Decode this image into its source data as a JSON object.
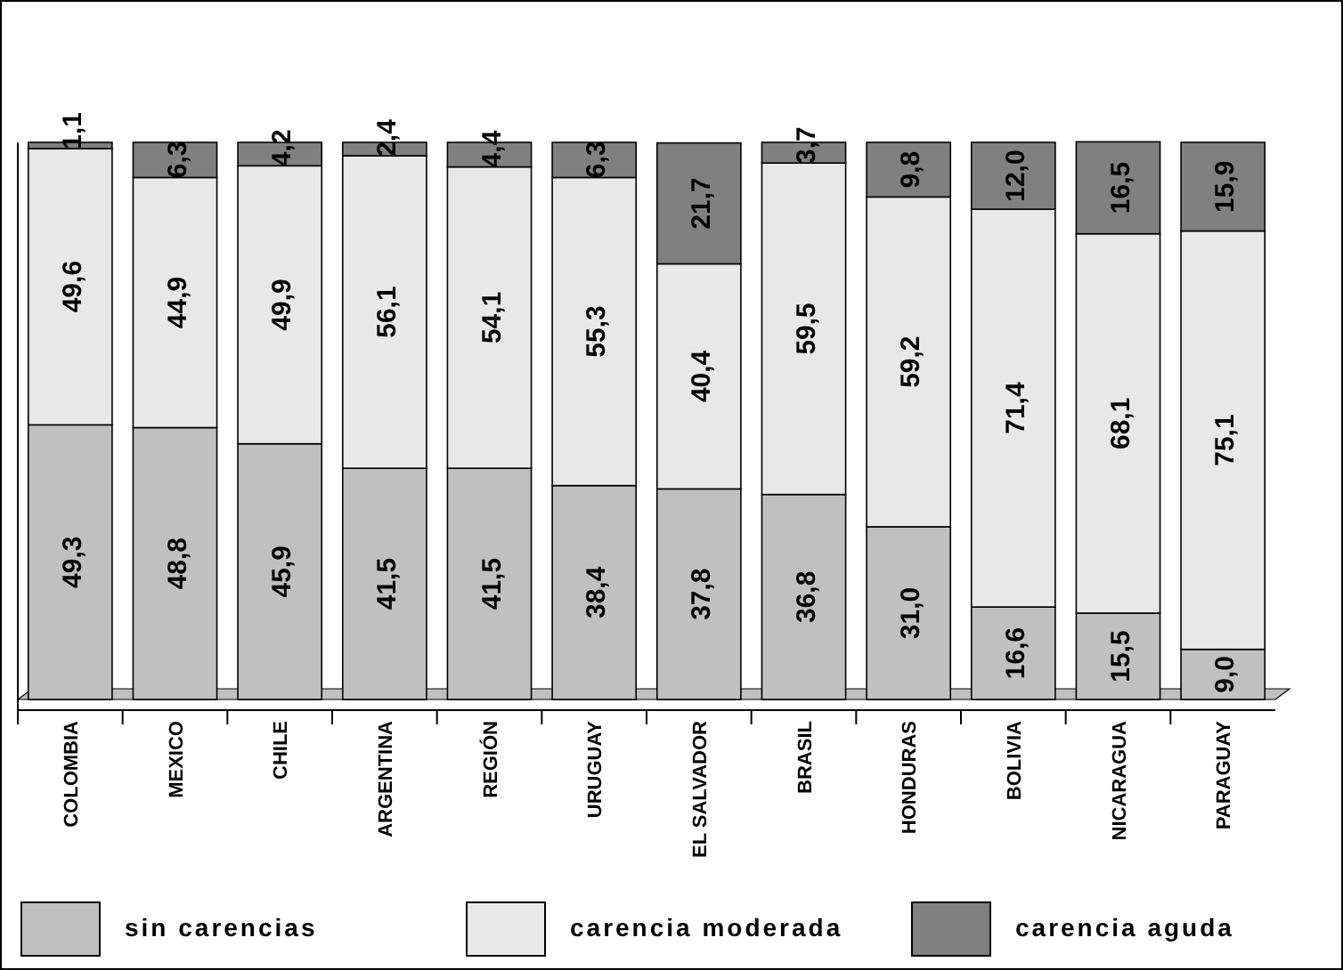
{
  "chart_data": {
    "type": "bar",
    "stacked": true,
    "categories": [
      "COLOMBIA",
      "MEXICO",
      "CHILE",
      "ARGENTINA",
      "REGIÓN",
      "URUGUAY",
      "EL SALVADOR",
      "BRASIL",
      "HONDURAS",
      "BOLIVIA",
      "NICARAGUA",
      "PARAGUAY"
    ],
    "series": [
      {
        "name": "sin carencias",
        "color": "#c0c0c0",
        "values": [
          49.3,
          48.8,
          45.9,
          41.5,
          41.5,
          38.4,
          37.8,
          36.8,
          31.0,
          16.6,
          15.5,
          9.0
        ],
        "value_labels": [
          "49,3",
          "48,8",
          "45,9",
          "41,5",
          "41,5",
          "38,4",
          "37,8",
          "36,8",
          "31,0",
          "16,6",
          "15,5",
          "9,0"
        ]
      },
      {
        "name": "carencia moderada",
        "color": "#e8e8e8",
        "values": [
          49.6,
          44.9,
          49.9,
          56.1,
          54.1,
          55.3,
          40.4,
          59.5,
          59.2,
          71.4,
          68.1,
          75.1
        ],
        "value_labels": [
          "49,6",
          "44,9",
          "49,9",
          "56,1",
          "54,1",
          "55,3",
          "40,4",
          "59,5",
          "59,2",
          "71,4",
          "68,1",
          "75,1"
        ]
      },
      {
        "name": "carencia aguda",
        "color": "#808080",
        "values": [
          1.1,
          6.3,
          4.2,
          2.4,
          4.4,
          6.3,
          21.7,
          3.7,
          9.8,
          12.0,
          16.5,
          15.9
        ],
        "value_labels": [
          "1,1",
          "6,3",
          "4,2",
          "2,4",
          "4,4",
          "6,3",
          "21,7",
          "3,7",
          "9,8",
          "12,0",
          "16,5",
          "15,9"
        ]
      }
    ],
    "ylim": [
      0,
      100
    ],
    "tick_labels": "x",
    "legend": "bottom"
  }
}
